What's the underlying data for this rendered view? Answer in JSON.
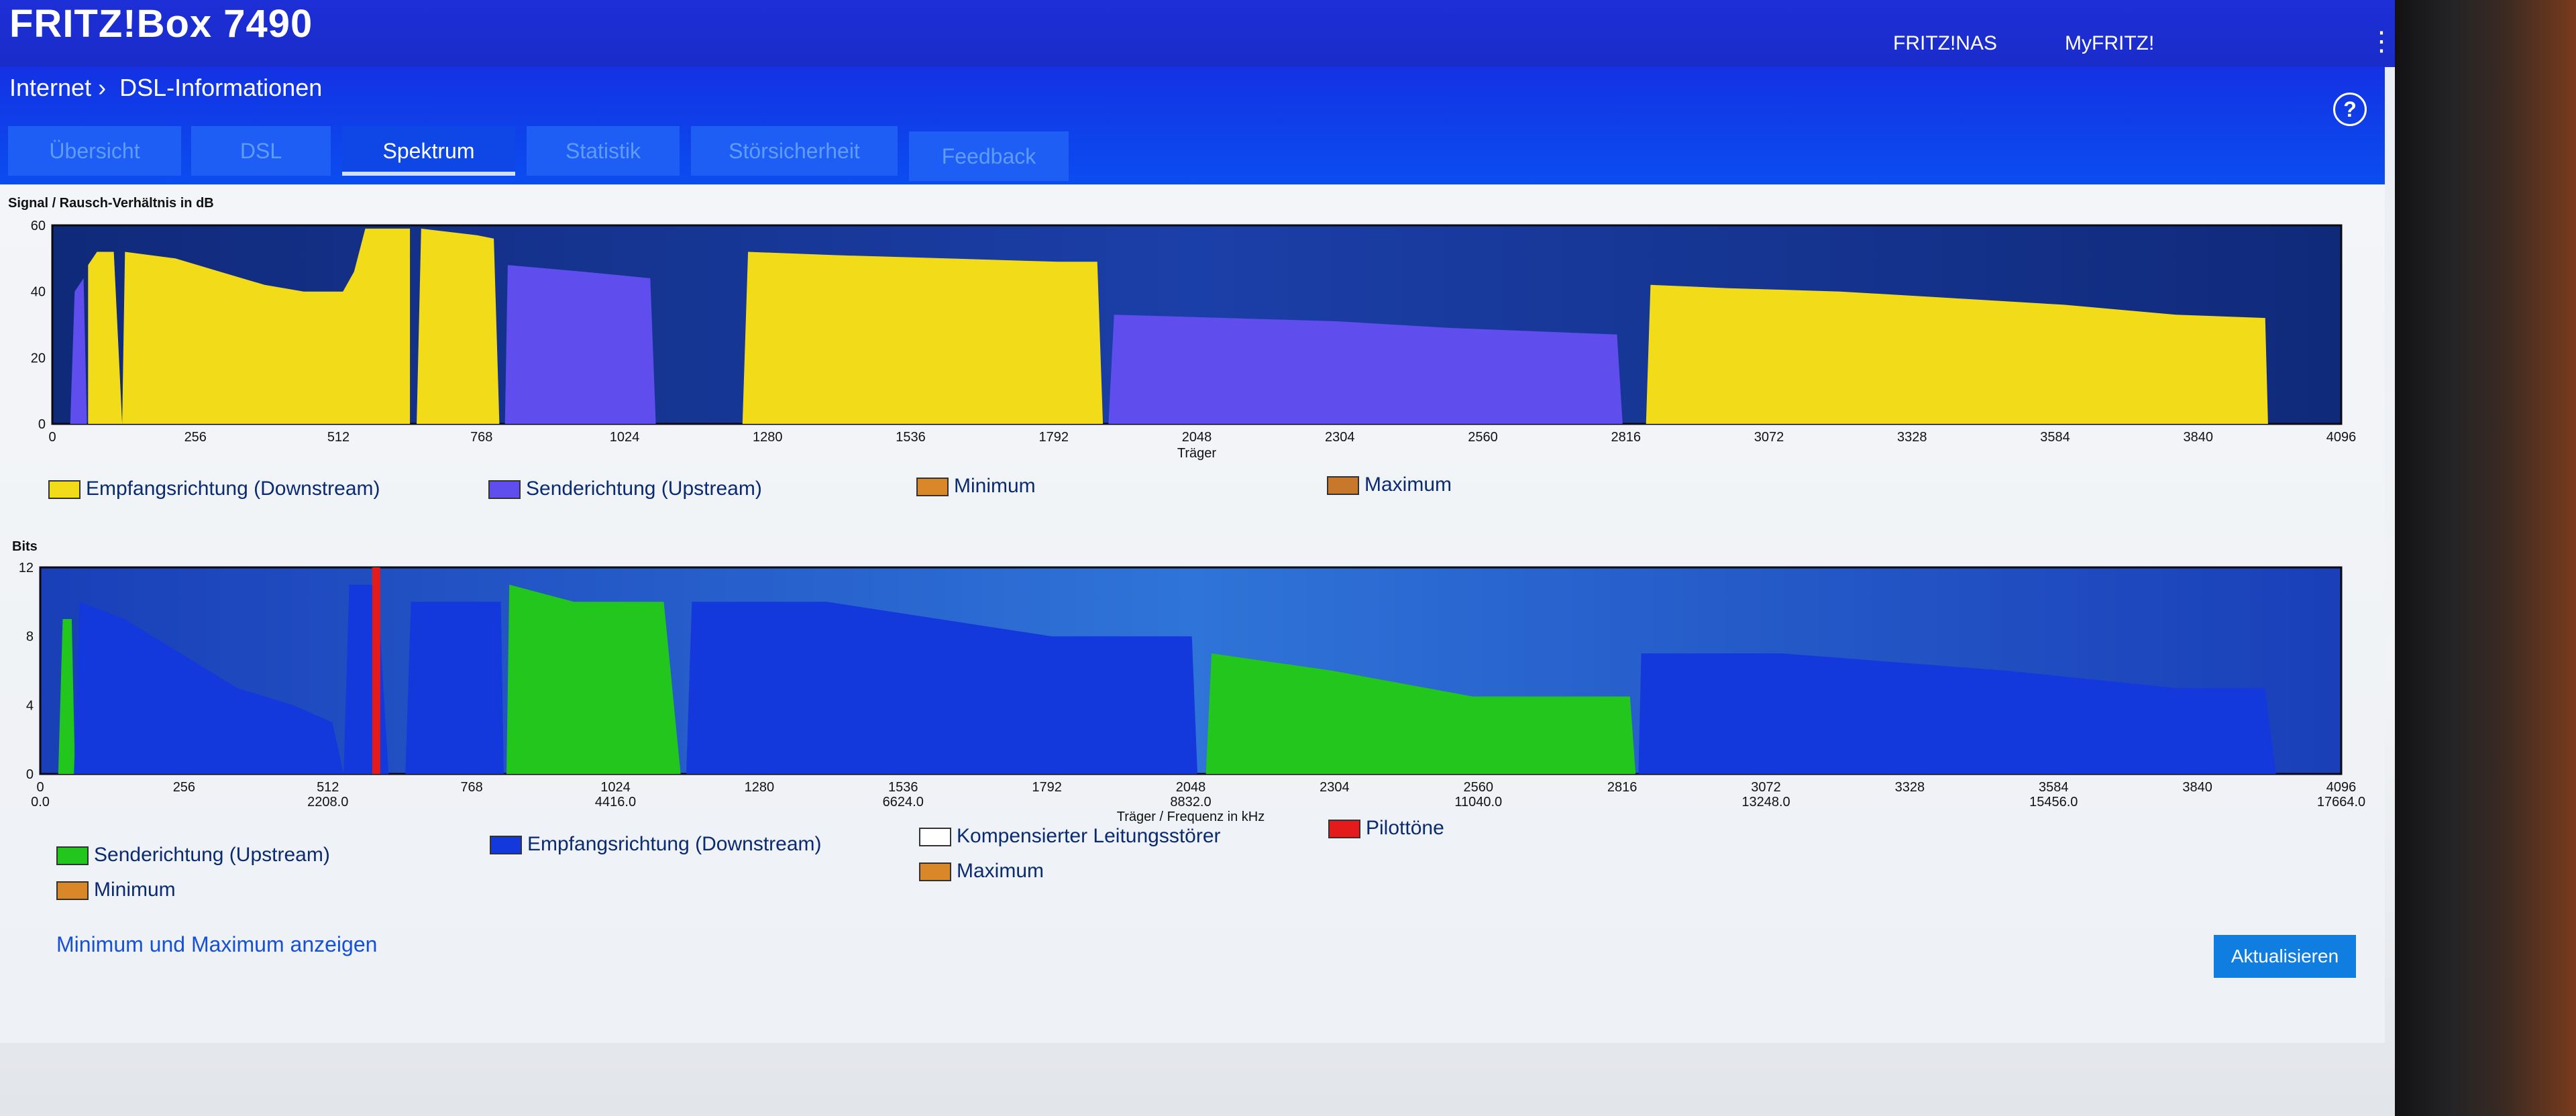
{
  "app": {
    "title": "FRITZ!Box 7490",
    "nav": [
      "FRITZ!NAS",
      "MyFRITZ!"
    ],
    "menu_icon": "kebab-icon"
  },
  "breadcrumb": [
    "Internet",
    "DSL-Informationen"
  ],
  "help_label": "?",
  "tabs": [
    {
      "label": "Übersicht",
      "active": false
    },
    {
      "label": "DSL",
      "active": false
    },
    {
      "label": "Spektrum",
      "active": true
    },
    {
      "label": "Statistik",
      "active": false
    },
    {
      "label": "Störsicherheit",
      "active": false
    },
    {
      "label": "Feedback",
      "active": false
    }
  ],
  "colors": {
    "downstream_yellow": "#f2dc1a",
    "upstream_violet": "#5f4dee",
    "bits_downstream_blue": "#1338dc",
    "bits_upstream_green": "#22c61c",
    "pilot_red": "#e41b1b",
    "minmax_orange": "#d98728",
    "plot_bg_dark": "#102a7a"
  },
  "chart_data": [
    {
      "type": "area",
      "title": "Signal / Rausch-Verhältnis in dB",
      "xlabel": "Träger",
      "ylabel": "Signal / Rausch-Verhältnis in dB",
      "xlim": [
        0,
        4096
      ],
      "ylim": [
        0,
        60
      ],
      "x_ticks": [
        0,
        256,
        512,
        768,
        1024,
        1280,
        1536,
        1792,
        2048,
        2304,
        2560,
        2816,
        3072,
        3328,
        3584,
        3840,
        4096
      ],
      "y_ticks": [
        0,
        20,
        40,
        60
      ],
      "series": [
        {
          "name": "Empfangsrichtung (Downstream)",
          "segments": [
            [
              [
                64,
                0
              ],
              [
                64,
                48
              ],
              [
                80,
                52
              ],
              [
                110,
                52
              ],
              [
                125,
                0
              ]
            ],
            [
              [
                125,
                0
              ],
              [
                130,
                52
              ],
              [
                220,
                50
              ],
              [
                300,
                46
              ],
              [
                380,
                42
              ],
              [
                450,
                40
              ],
              [
                520,
                40
              ],
              [
                540,
                46
              ],
              [
                560,
                59
              ],
              [
                640,
                59
              ],
              [
                640,
                0
              ]
            ],
            [
              [
                652,
                0
              ],
              [
                660,
                59
              ],
              [
                760,
                57
              ],
              [
                790,
                56
              ],
              [
                800,
                0
              ]
            ],
            [
              [
                1235,
                0
              ],
              [
                1245,
                52
              ],
              [
                1400,
                51
              ],
              [
                1600,
                50
              ],
              [
                1800,
                49
              ],
              [
                1870,
                49
              ],
              [
                1880,
                0
              ]
            ],
            [
              [
                2852,
                0
              ],
              [
                2860,
                42
              ],
              [
                3000,
                41
              ],
              [
                3200,
                40
              ],
              [
                3400,
                38
              ],
              [
                3600,
                36
              ],
              [
                3800,
                33
              ],
              [
                3960,
                32
              ],
              [
                3965,
                0
              ]
            ]
          ]
        },
        {
          "name": "Senderichtung (Upstream)",
          "segments": [
            [
              [
                32,
                0
              ],
              [
                40,
                40
              ],
              [
                56,
                44
              ],
              [
                62,
                0
              ]
            ],
            [
              [
                810,
                0
              ],
              [
                815,
                48
              ],
              [
                950,
                46
              ],
              [
                1070,
                44
              ],
              [
                1080,
                0
              ]
            ],
            [
              [
                1890,
                0
              ],
              [
                1900,
                33
              ],
              [
                2100,
                32
              ],
              [
                2300,
                31
              ],
              [
                2500,
                29
              ],
              [
                2800,
                27
              ],
              [
                2810,
                0
              ]
            ]
          ]
        }
      ],
      "legend": [
        "Empfangsrichtung (Downstream)",
        "Senderichtung (Upstream)",
        "Minimum",
        "Maximum"
      ]
    },
    {
      "type": "area",
      "title": "Bits",
      "xlabel": "Träger / Frequenz in kHz",
      "ylabel": "Bits",
      "xlim": [
        0,
        4096
      ],
      "ylim": [
        0,
        12
      ],
      "x_ticks": [
        0,
        256,
        512,
        768,
        1024,
        1280,
        1536,
        1792,
        2048,
        2304,
        2560,
        2816,
        3072,
        3328,
        3584,
        3840,
        4096
      ],
      "x_freq_ticks": [
        {
          "carrier": 0,
          "label": "0.0"
        },
        {
          "carrier": 512,
          "label": "2208.0"
        },
        {
          "carrier": 1024,
          "label": "4416.0"
        },
        {
          "carrier": 1536,
          "label": "6624.0"
        },
        {
          "carrier": 2048,
          "label": "8832.0"
        },
        {
          "carrier": 2560,
          "label": "11040.0"
        },
        {
          "carrier": 3072,
          "label": "13248.0"
        },
        {
          "carrier": 3584,
          "label": "15456.0"
        },
        {
          "carrier": 4096,
          "label": "17664.0"
        }
      ],
      "y_ticks": [
        0,
        4,
        8,
        12
      ],
      "pilot_tone_carrier": 598,
      "series": [
        {
          "name": "Senderichtung (Upstream)",
          "segments": [
            [
              [
                32,
                0
              ],
              [
                40,
                9
              ],
              [
                56,
                9
              ],
              [
                62,
                0
              ]
            ],
            [
              [
                830,
                0
              ],
              [
                835,
                11
              ],
              [
                950,
                10
              ],
              [
                1110,
                10
              ],
              [
                1140,
                0
              ]
            ],
            [
              [
                2075,
                0
              ],
              [
                2085,
                7
              ],
              [
                2300,
                6
              ],
              [
                2550,
                4.5
              ],
              [
                2830,
                4.5
              ],
              [
                2840,
                0
              ]
            ]
          ]
        },
        {
          "name": "Empfangsrichtung (Downstream)",
          "segments": [
            [
              [
                60,
                0
              ],
              [
                70,
                10
              ],
              [
                150,
                9
              ],
              [
                250,
                7
              ],
              [
                350,
                5
              ],
              [
                450,
                4
              ],
              [
                520,
                3
              ],
              [
                540,
                0
              ]
            ],
            [
              [
                540,
                0
              ],
              [
                550,
                11
              ],
              [
                600,
                11
              ],
              [
                620,
                0
              ]
            ],
            [
              [
                650,
                0
              ],
              [
                660,
                10
              ],
              [
                820,
                10
              ],
              [
                825,
                0
              ]
            ],
            [
              [
                1150,
                0
              ],
              [
                1160,
                10
              ],
              [
                1400,
                10
              ],
              [
                1600,
                9
              ],
              [
                1800,
                8
              ],
              [
                2050,
                8
              ],
              [
                2060,
                0
              ]
            ],
            [
              [
                2845,
                0
              ],
              [
                2850,
                7
              ],
              [
                3100,
                7
              ],
              [
                3300,
                6.5
              ],
              [
                3500,
                6
              ],
              [
                3800,
                5
              ],
              [
                3960,
                5
              ],
              [
                3980,
                0
              ]
            ]
          ]
        }
      ],
      "legend": [
        "Senderichtung (Upstream)",
        "Empfangsrichtung (Downstream)",
        "Kompensierter Leitungsstörer",
        "Pilottöne",
        "Minimum",
        "Maximum"
      ]
    }
  ],
  "chart_labels": {
    "snr_title": "Signal / Rausch-Verhältnis in dB",
    "snr_ylabels": [
      "60",
      "40",
      "20",
      "0"
    ],
    "snr_xlabel": "Träger",
    "bits_title": "Bits",
    "bits_ylabels": [
      "12",
      "8",
      "4",
      "0"
    ],
    "bits_xlabel": "Träger / Frequenz in kHz"
  },
  "legend_snr": {
    "downstream": "Empfangsrichtung (Downstream)",
    "upstream": "Senderichtung (Upstream)",
    "minimum": "Minimum",
    "maximum": "Maximum"
  },
  "legend_bits": {
    "upstream": "Senderichtung (Upstream)",
    "downstream": "Empfangsrichtung (Downstream)",
    "compensated": "Kompensierter Leitungsstörer",
    "pilot": "Pilottöne",
    "minimum": "Minimum",
    "maximum": "Maximum"
  },
  "actions": {
    "show_minmax": "Minimum und Maximum anzeigen",
    "refresh": "Aktualisieren"
  }
}
